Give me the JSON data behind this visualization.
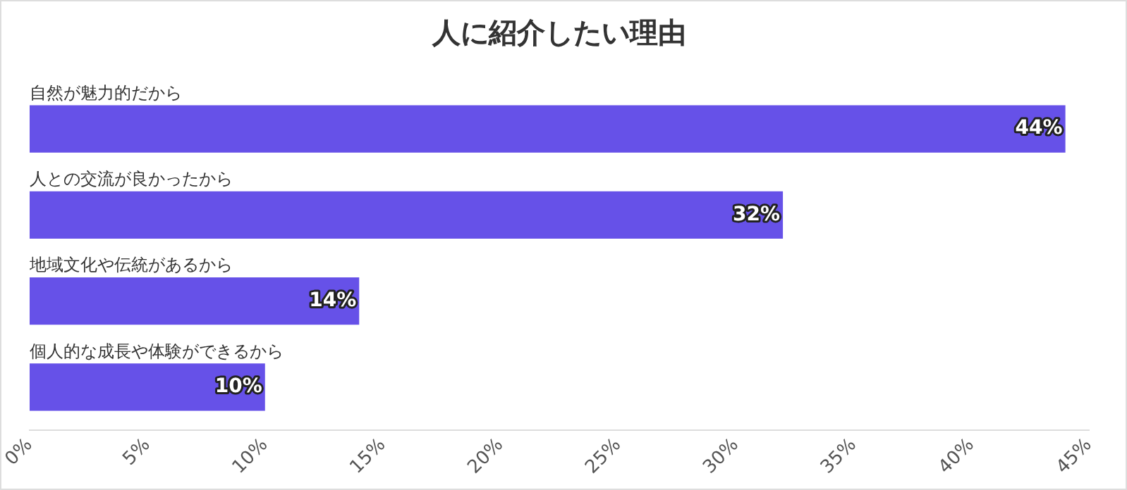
{
  "chart_data": {
    "type": "bar",
    "orientation": "horizontal",
    "title": "人に紹介したい理由",
    "categories": [
      "自然が魅力的だから",
      "人との交流が良かったから",
      "地域文化や伝統があるから",
      "個人的な成長や体験ができるから"
    ],
    "values": [
      44,
      32,
      14,
      10
    ],
    "color": "#6651e8",
    "value_labels": [
      "44%",
      "32%",
      "14%",
      "10%"
    ],
    "xlim": [
      0,
      45
    ],
    "xticks": [
      {
        "value": 0,
        "label": "0%"
      },
      {
        "value": 5,
        "label": "5%"
      },
      {
        "value": 10,
        "label": "10%"
      },
      {
        "value": 15,
        "label": "15%"
      },
      {
        "value": 20,
        "label": "20%"
      },
      {
        "value": 25,
        "label": "25%"
      },
      {
        "value": 30,
        "label": "30%"
      },
      {
        "value": 35,
        "label": "35%"
      },
      {
        "value": 40,
        "label": "40%"
      },
      {
        "value": 45,
        "label": "45%"
      }
    ],
    "grid": false,
    "legend": false
  }
}
